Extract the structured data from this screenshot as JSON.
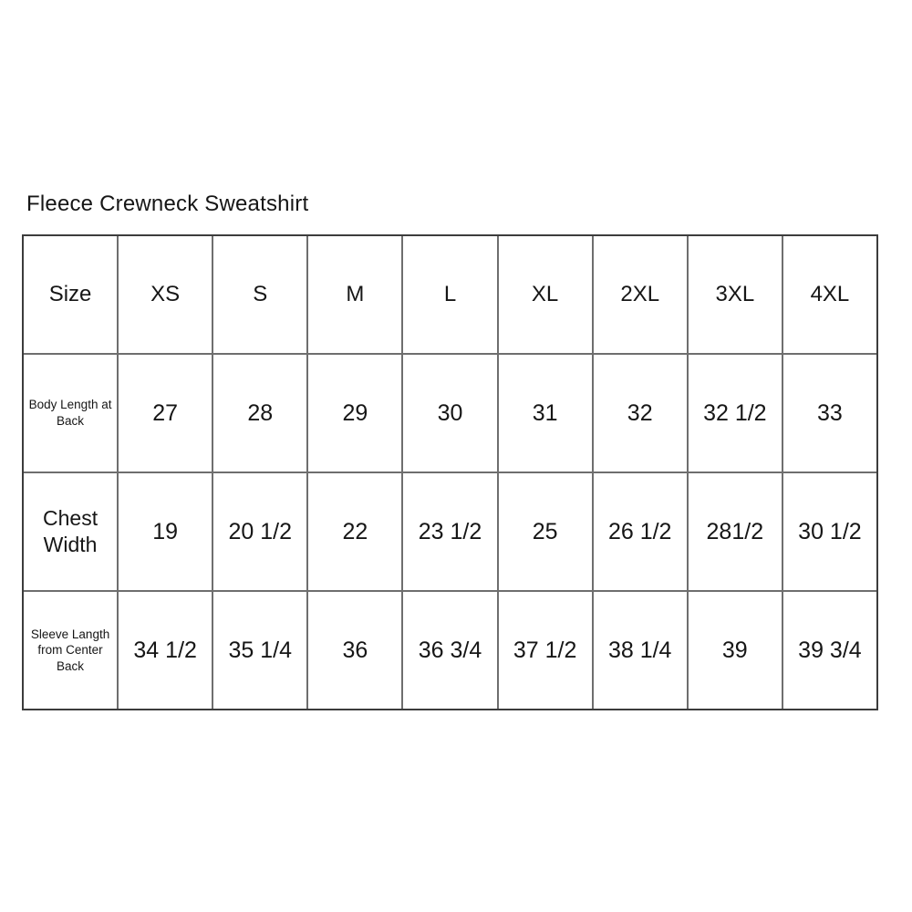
{
  "page": {
    "title": "Fleece Crewneck Sweatshirt"
  },
  "colors": {
    "background": "#ffffff",
    "text": "#161616",
    "grid_border": "#6e6e6e",
    "outer_border": "#3c3c3c"
  },
  "chart_data": {
    "type": "table",
    "title": "Fleece Crewneck Sweatshirt",
    "columns": [
      "Size",
      "XS",
      "S",
      "M",
      "L",
      "XL",
      "2XL",
      "3XL",
      "4XL"
    ],
    "rows": [
      {
        "label": "Body Length at Back",
        "values": [
          "27",
          "28",
          "29",
          "30",
          "31",
          "32",
          "32 1/2",
          "33"
        ]
      },
      {
        "label": "Chest Width",
        "values": [
          "19",
          "20 1/2",
          "22",
          "23 1/2",
          "25",
          "26 1/2",
          "281/2",
          "30 1/2"
        ]
      },
      {
        "label": "Sleeve Langth from Center Back",
        "values": [
          "34 1/2",
          "35 1/4",
          "36",
          "36 3/4",
          "37 1/2",
          "38 1/4",
          "39",
          "39 3/4"
        ]
      }
    ],
    "layout": {
      "grid": true,
      "header_row": true,
      "units": "inches (implied, not shown)"
    }
  }
}
